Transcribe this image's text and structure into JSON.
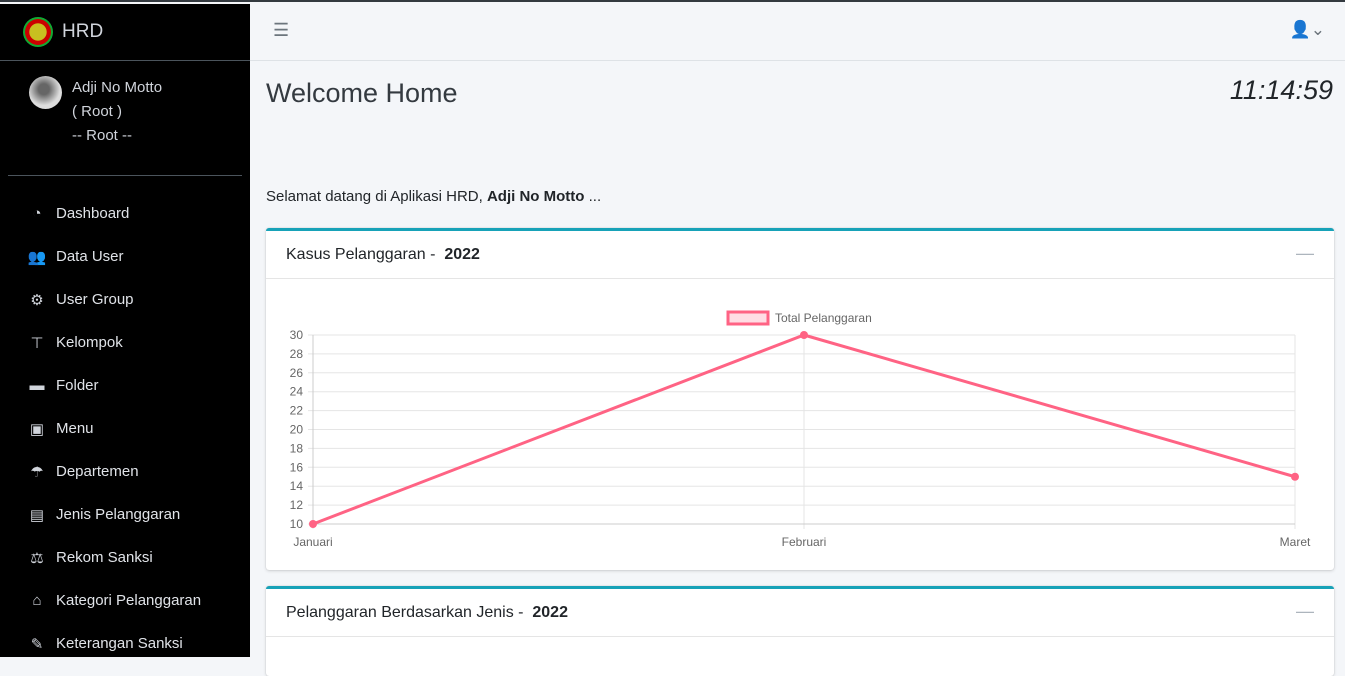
{
  "app": {
    "name": "HRD"
  },
  "user": {
    "name": "Adji No Motto",
    "role": "( Root )",
    "group": "-- Root --"
  },
  "sidebar": {
    "items": [
      {
        "label": "Dashboard",
        "icon": "tachometer-icon",
        "glyph": "◔"
      },
      {
        "label": "Data User",
        "icon": "users-icon",
        "glyph": "👥"
      },
      {
        "label": "User Group",
        "icon": "gear-icon",
        "glyph": "⚙"
      },
      {
        "label": "Kelompok",
        "icon": "sitemap-icon",
        "glyph": "⊤"
      },
      {
        "label": "Folder",
        "icon": "folder-icon",
        "glyph": "▬"
      },
      {
        "label": "Menu",
        "icon": "archive-icon",
        "glyph": "▣"
      },
      {
        "label": "Departemen",
        "icon": "umbrella-icon",
        "glyph": "☂"
      },
      {
        "label": "Jenis Pelanggaran",
        "icon": "briefcase-icon",
        "glyph": "▤"
      },
      {
        "label": "Rekom Sanksi",
        "icon": "balance-scale-icon",
        "glyph": "⚖"
      },
      {
        "label": "Kategori Pelanggaran",
        "icon": "home-icon",
        "glyph": "⌂"
      },
      {
        "label": "Keterangan Sanksi",
        "icon": "edit-icon",
        "glyph": "✎"
      }
    ]
  },
  "header": {
    "title": "Welcome Home",
    "clock": "11:14:59"
  },
  "welcome": {
    "prefix": "Selamat datang di Aplikasi HRD, ",
    "name": "Adji No Motto",
    "suffix": " ..."
  },
  "cards": [
    {
      "title": "Kasus Pelanggaran - ",
      "year": "2022"
    },
    {
      "title": "Pelanggaran Berdasarkan Jenis - ",
      "year": "2022"
    }
  ],
  "chart_data": {
    "type": "line",
    "categories": [
      "Januari",
      "Februari",
      "Maret"
    ],
    "series": [
      {
        "name": "Total Pelanggaran",
        "values": [
          10,
          30,
          15
        ],
        "color": "#ff6384"
      }
    ],
    "ylim": [
      10,
      30
    ],
    "yticks": [
      10,
      12,
      14,
      16,
      18,
      20,
      22,
      24,
      26,
      28,
      30
    ],
    "grid": true,
    "legend": "top"
  }
}
